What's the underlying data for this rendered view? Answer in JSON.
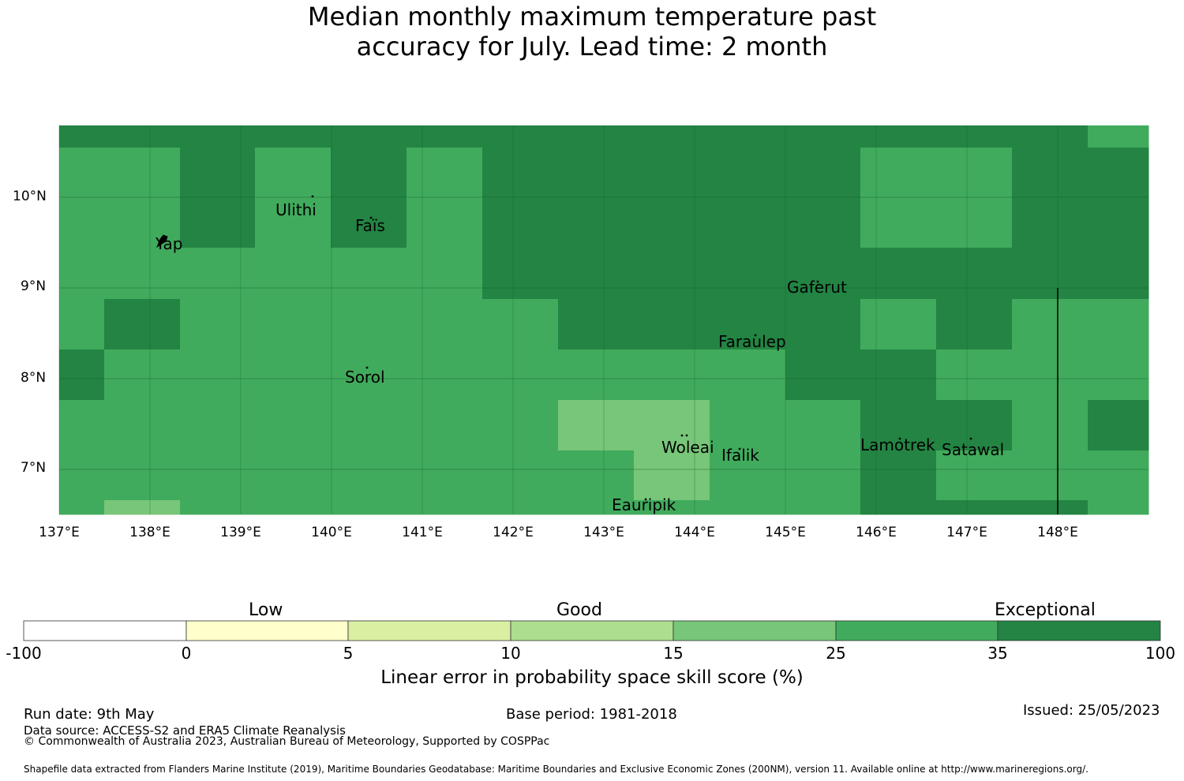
{
  "title_line1": "Median monthly maximum temperature past",
  "title_line2": "accuracy for July. Lead time: 2 month",
  "lat_labels": [
    "10°N",
    "9°N",
    "8°N",
    "7°N"
  ],
  "lon_labels": [
    "137°E",
    "138°E",
    "139°E",
    "140°E",
    "141°E",
    "142°E",
    "143°E",
    "144°E",
    "145°E",
    "146°E",
    "147°E",
    "148°E"
  ],
  "places": [
    {
      "id": "ulithi",
      "name": "Ulithi"
    },
    {
      "id": "fais",
      "name": "Faïs"
    },
    {
      "id": "yap",
      "name": "Yap"
    },
    {
      "id": "gaferut",
      "name": "Gaferut"
    },
    {
      "id": "faraulep",
      "name": "Faraulep"
    },
    {
      "id": "sorol",
      "name": "Sorol"
    },
    {
      "id": "woleai",
      "name": "Woleai"
    },
    {
      "id": "ifalik",
      "name": "Ifalik"
    },
    {
      "id": "lamotrek",
      "name": "Lamotrek"
    },
    {
      "id": "satawal",
      "name": "Satawal"
    },
    {
      "id": "eauripik",
      "name": "Eauripik"
    }
  ],
  "colors": {
    "c0": "#ffffff",
    "c1": "#ffffcc",
    "c2": "#d9f0a3",
    "c3": "#addd8e",
    "c4": "#78c679",
    "c5": "#41ab5d",
    "c6": "#238443"
  },
  "colorbar": {
    "categories": [
      "Low",
      "Good",
      "Exceptional"
    ],
    "ticks": [
      "-100",
      "0",
      "5",
      "10",
      "15",
      "25",
      "35",
      "100"
    ],
    "xlabel": "Linear error in probability space skill score (%)"
  },
  "footer": {
    "run_date": "Run date: 9th May",
    "base_period": "Base period: 1981-2018",
    "issued": "Issued: 25/05/2023",
    "data_source": "Data source: ACCESS-S2 and ERA5 Climate Reanalysis",
    "copyright": "© Commonwealth of Australia 2023, Australian Bureau of Meteorology, Supported by COSPPac",
    "shapefile": "Shapefile data extracted from Flanders Marine Institute (2019), Maritime Boundaries Geodatabase: Maritime Boundaries and Exclusive Economic Zones (200NM), version 11. Available online at http://www.marineregions.org/."
  }
}
